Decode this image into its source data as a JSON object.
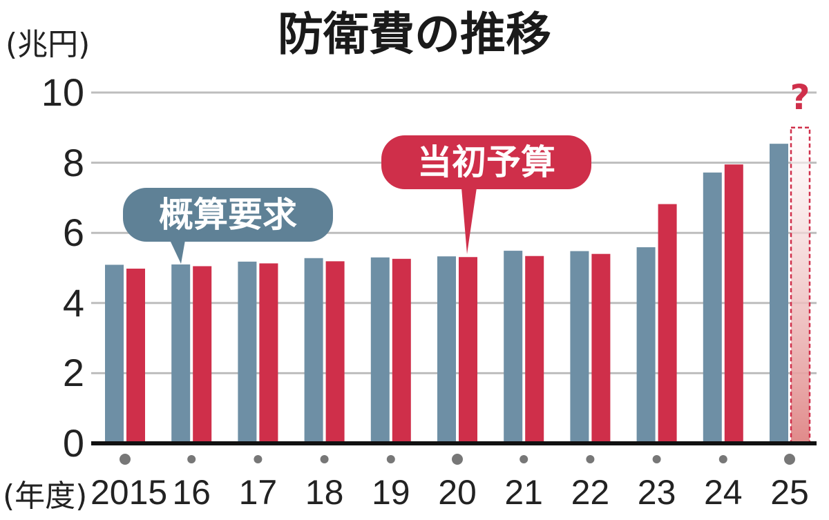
{
  "chart_data": {
    "type": "bar",
    "title": "防衛費の推移",
    "ylabel": "(兆円)",
    "xlabel": "(年度)",
    "ylim": [
      0,
      10
    ],
    "yticks": [
      0,
      2,
      4,
      6,
      8,
      10
    ],
    "categories": [
      "2015",
      "16",
      "17",
      "18",
      "19",
      "20",
      "21",
      "22",
      "23",
      "24",
      "25"
    ],
    "series": [
      {
        "name": "概算要求",
        "color": "#6e8fa5",
        "values": [
          5.09,
          5.1,
          5.18,
          5.28,
          5.3,
          5.33,
          5.49,
          5.48,
          5.59,
          7.72,
          8.54
        ]
      },
      {
        "name": "当初予算",
        "color": "#cf2f4a",
        "values": [
          4.98,
          5.05,
          5.13,
          5.19,
          5.26,
          5.31,
          5.34,
          5.4,
          6.82,
          7.95,
          null
        ]
      }
    ],
    "annotation": "?",
    "grid": true
  }
}
